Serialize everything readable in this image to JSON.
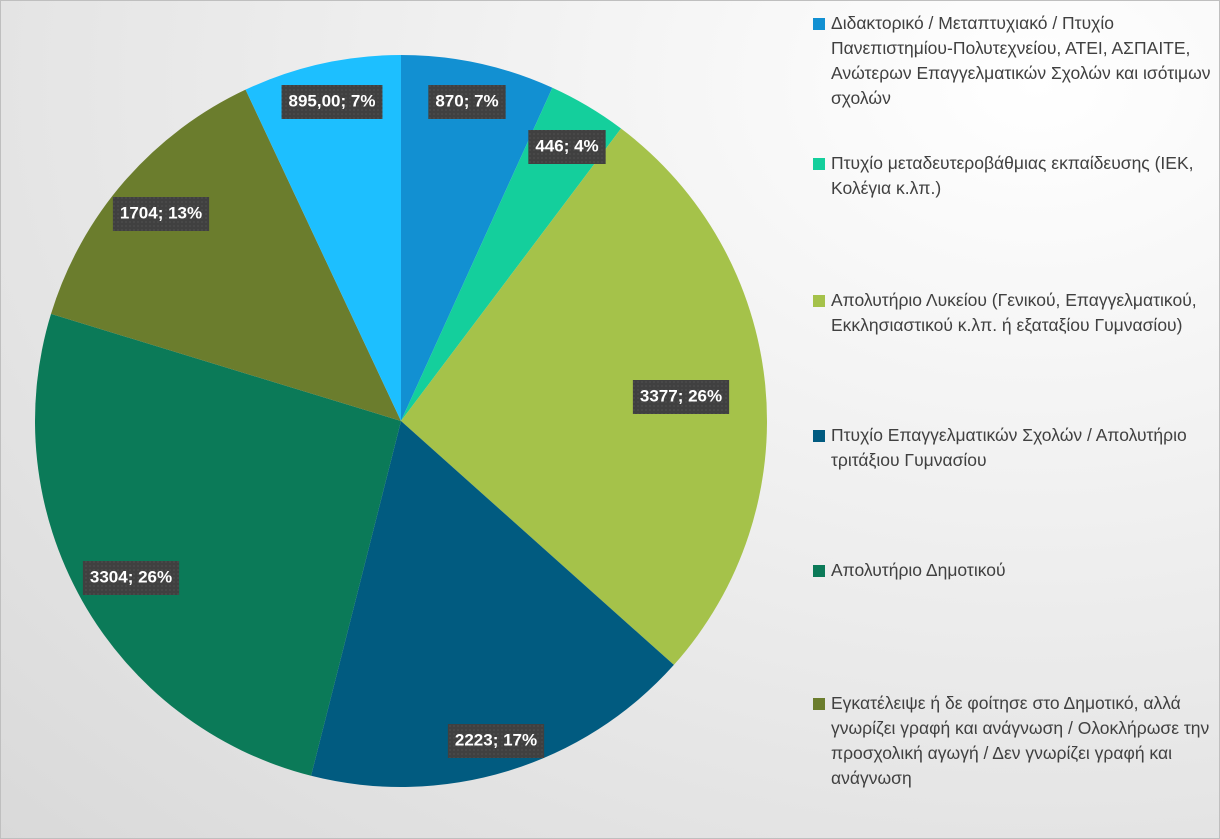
{
  "chart_data": {
    "type": "pie",
    "categories": [
      "Διδακτορικό / Μεταπτυχιακό / Πτυχίο Πανεπιστημίου-Πολυτεχνείου, ΑΤΕΙ, ΑΣΠΑΙΤΕ, Ανώτερων Επαγγελματικών Σχολών και ισότιμων σχολών",
      "Πτυχίο μεταδευτεροβάθμιας εκπαίδευσης (ΙΕΚ, Κολέγια κ.λπ.)",
      "Απολυτήριο Λυκείου (Γενικού, Επαγγελματικού, Εκκλησιαστικού κ.λπ. ή εξαταξίου Γυμνασίου)",
      "Πτυχίο Επαγγελματικών Σχολών / Απολυτήριο τριτάξιου Γυμνασίου",
      "Απολυτήριο Δημοτικού",
      "Εγκατέλειψε ή δε φοίτησε στο Δημοτικό, αλλά γνωρίζει γραφή και ανάγνωση / Ολοκλήρωσε την προσχολική αγωγή / Δεν γνωρίζει γραφή και ανάγνωση",
      null
    ],
    "values": [
      870,
      446,
      3377,
      2223,
      3304,
      1704,
      895
    ],
    "value_labels": [
      "870; 7%",
      "446; 4%",
      "3377; 26%",
      "2223; 17%",
      "3304; 26%",
      "1704; 13%",
      "895,00; 7%"
    ],
    "colors": [
      "#1290d2",
      "#14cf9c",
      "#a5c24a",
      "#015b80",
      "#0b7a58",
      "#6b7d2d",
      "#1dbfff"
    ]
  }
}
